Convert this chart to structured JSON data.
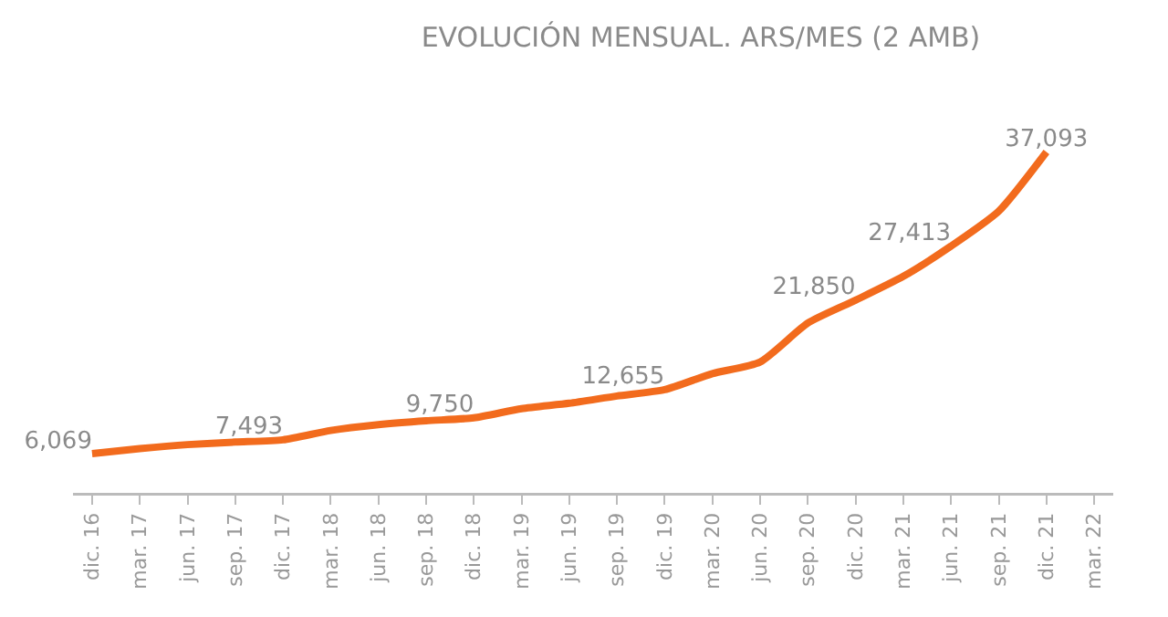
{
  "chart_data": {
    "type": "line",
    "title": "EVOLUCIÓN MENSUAL. ARS/MES (2 AMB)",
    "categories": [
      "dic. 16",
      "mar. 17",
      "jun. 17",
      "sep. 17",
      "dic. 17",
      "mar. 18",
      "jun. 18",
      "sep. 18",
      "dic. 18",
      "mar. 19",
      "jun. 19",
      "sep. 19",
      "dic. 19",
      "mar. 20",
      "jun. 20",
      "sep. 20",
      "dic. 20",
      "mar. 21",
      "jun. 21",
      "sep. 21",
      "dic. 21",
      "mar. 22"
    ],
    "values": [
      6069,
      6580,
      7000,
      7260,
      7493,
      8450,
      9050,
      9450,
      9750,
      10700,
      11250,
      12000,
      12655,
      14300,
      15500,
      19500,
      21850,
      24300,
      27413,
      31000,
      37093,
      null
    ],
    "value_labels": [
      "6,069",
      null,
      null,
      null,
      "7,493",
      null,
      null,
      null,
      "9,750",
      null,
      null,
      null,
      "12,655",
      null,
      null,
      null,
      "21,850",
      null,
      "27,413",
      null,
      "37,093",
      null
    ],
    "color": "#f26b1d"
  }
}
